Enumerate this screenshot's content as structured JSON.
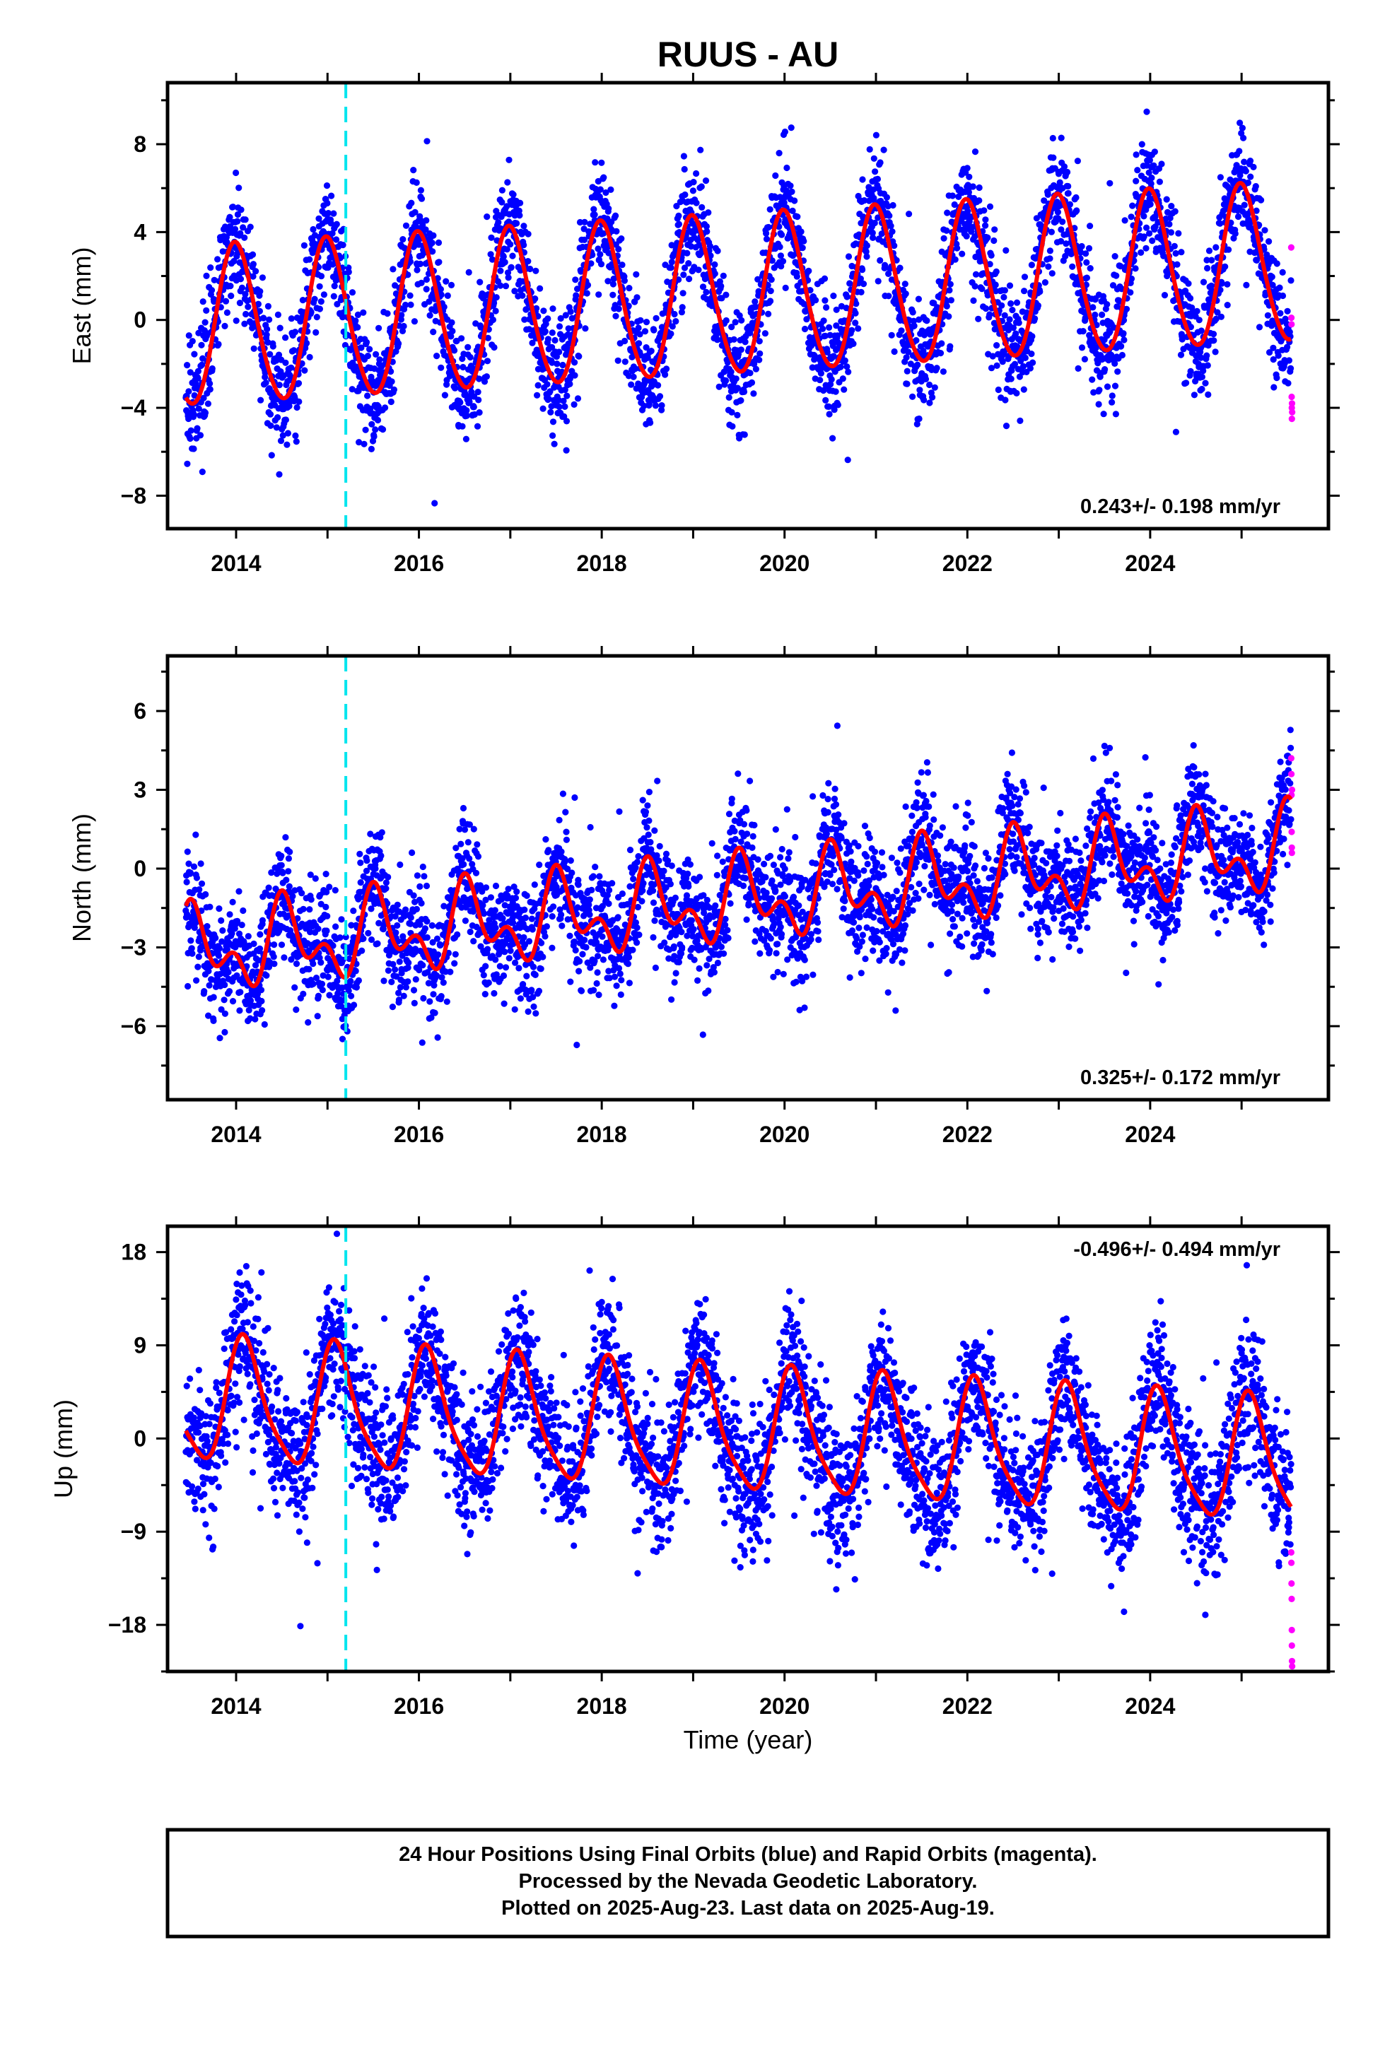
{
  "title": "RUUS - AU",
  "xlabel": "Time (year)",
  "colors": {
    "final": "#0000ff",
    "rapid": "#ff00ff",
    "model": "#ff0000",
    "break": "#00e5ee"
  },
  "footer": {
    "line1": "24 Hour Positions Using Final Orbits (blue) and Rapid Orbits (magenta).",
    "line2": "Processed by the Nevada Geodetic Laboratory.",
    "line3": "Plotted on 2025-Aug-23. Last data on 2025-Aug-19."
  },
  "chart_data": [
    {
      "type": "scatter",
      "component": "east",
      "ylabel": "East (mm)",
      "rate_label": "0.243+/- 0.198 mm/yr",
      "xlim": [
        2013.25,
        2025.95
      ],
      "ylim": [
        -9.5,
        10.8
      ],
      "xticks": [
        2014,
        2016,
        2018,
        2020,
        2022,
        2024
      ],
      "yticks": [
        -8,
        -4,
        0,
        4,
        8
      ],
      "ytick_labels": [
        "−8",
        "−4",
        "0",
        "4",
        "8"
      ],
      "break_x": 2015.2,
      "data_start": 2013.45,
      "data_end": 2025.54,
      "rapid_start": 2025.54,
      "model": {
        "offset": -0.4,
        "trend": 0.243,
        "annual_amp": 3.6,
        "annual_peak": 2014.0,
        "semiannual_amp": 0.3,
        "noise": 1.3
      },
      "rapid_values": [
        3.3,
        0.1,
        -0.2,
        -3.5,
        -4.0,
        -4.5,
        -3.8,
        -4.2
      ]
    },
    {
      "type": "scatter",
      "component": "north",
      "ylabel": "North (mm)",
      "rate_label": "0.325+/- 0.172 mm/yr",
      "xlim": [
        2013.25,
        2025.95
      ],
      "ylim": [
        -8.8,
        8.1
      ],
      "xticks": [
        2014,
        2016,
        2018,
        2020,
        2022,
        2024
      ],
      "yticks": [
        -6,
        -3,
        0,
        3,
        6
      ],
      "ytick_labels": [
        "−6",
        "−3",
        "0",
        "3",
        "6"
      ],
      "break_x": 2015.2,
      "data_start": 2013.45,
      "data_end": 2025.54,
      "rapid_start": 2025.54,
      "model": {
        "offset": -3.2,
        "trend": 0.325,
        "annual_amp": 1.2,
        "annual_peak": 2014.55,
        "semiannual_amp": 0.9,
        "noise": 1.1
      },
      "rapid_values": [
        4.2,
        3.6,
        2.8,
        1.4,
        0.8,
        0.6,
        3.0
      ]
    },
    {
      "type": "scatter",
      "component": "up",
      "ylabel": "Up (mm)",
      "rate_label": "-0.496+/- 0.494 mm/yr",
      "xlim": [
        2013.25,
        2025.95
      ],
      "ylim": [
        -22.5,
        20.5
      ],
      "xticks": [
        2014,
        2016,
        2018,
        2020,
        2022,
        2024
      ],
      "yticks": [
        -18,
        -9,
        0,
        9,
        18
      ],
      "ytick_labels": [
        "−18",
        "−9",
        "0",
        "9",
        "18"
      ],
      "break_x": 2015.2,
      "data_start": 2013.45,
      "data_end": 2025.54,
      "rapid_start": 2025.54,
      "model": {
        "offset": 3.6,
        "trend": -0.496,
        "annual_amp": 5.8,
        "annual_peak": 2014.1,
        "semiannual_amp": 1.2,
        "noise": 3.3
      },
      "rapid_values": [
        -11.0,
        -12.0,
        -14.0,
        -15.5,
        -18.5,
        -20.0,
        -21.5,
        -22.0
      ]
    }
  ]
}
